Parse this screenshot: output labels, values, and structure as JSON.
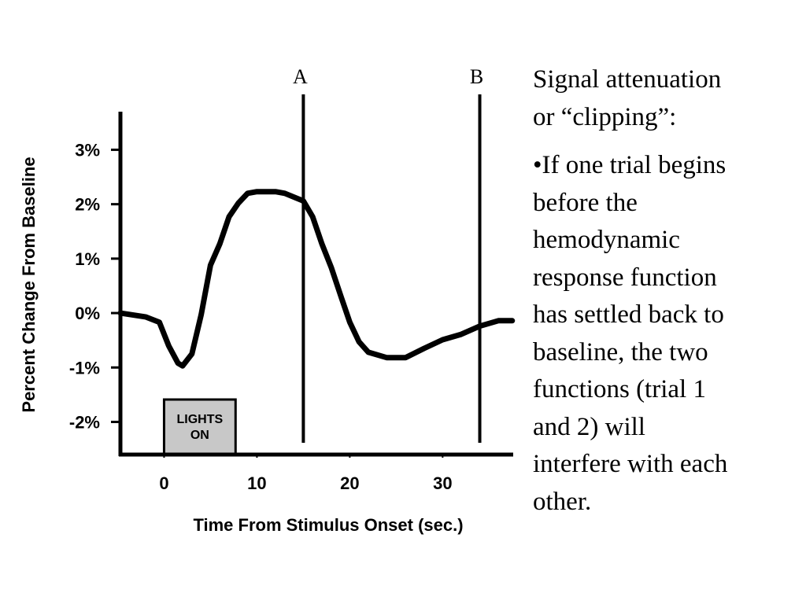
{
  "chart_data": {
    "type": "line",
    "x_label": "Time From Stimulus Onset (sec.)",
    "y_label": "Percent Change From Baseline",
    "x": [
      -4.7,
      -2,
      -0.5,
      0.5,
      1.5,
      2,
      3,
      4,
      5,
      6,
      7,
      8,
      9,
      10,
      12,
      13,
      15,
      16,
      17,
      18,
      19,
      20,
      21,
      22,
      24,
      26,
      28,
      30,
      32,
      34,
      36,
      37.5
    ],
    "values": [
      0,
      -0.07,
      -0.17,
      -0.6,
      -0.92,
      -0.97,
      -0.75,
      -0.03,
      0.88,
      1.27,
      1.77,
      2.02,
      2.2,
      2.23,
      2.23,
      2.2,
      2.06,
      1.77,
      1.27,
      0.84,
      0.33,
      -0.17,
      -0.53,
      -0.72,
      -0.82,
      -0.82,
      -0.65,
      -0.49,
      -0.39,
      -0.24,
      -0.14,
      -0.14
    ],
    "color": "#000000",
    "xlim": [
      -4.7,
      37.6
    ],
    "ylim": [
      -2.6,
      3.7
    ],
    "xticks": [
      0,
      10,
      20,
      30
    ],
    "yticks": [
      {
        "value": 3,
        "label": "3%"
      },
      {
        "value": 2,
        "label": "2%"
      },
      {
        "value": 1,
        "label": "1%"
      },
      {
        "value": 0,
        "label": "0%"
      },
      {
        "value": -1,
        "label": "-1%"
      },
      {
        "value": -2,
        "label": "-2%"
      }
    ],
    "markers": [
      {
        "label": "A",
        "x": 15
      },
      {
        "label": "B",
        "x": 34
      }
    ],
    "stimulus": {
      "label": [
        "LIGHTS",
        "ON"
      ],
      "x": [
        0,
        7.7
      ]
    }
  },
  "text": {
    "heading_lines": [
      "Signal attenuation",
      "or “clipping”:"
    ],
    "bullet_lines": [
      "•If one trial begins",
      "before the",
      "hemodynamic",
      "response function",
      "has settled back to",
      "baseline, the two",
      "functions (trial 1",
      "and 2) will",
      "interfere with each",
      "other."
    ]
  }
}
